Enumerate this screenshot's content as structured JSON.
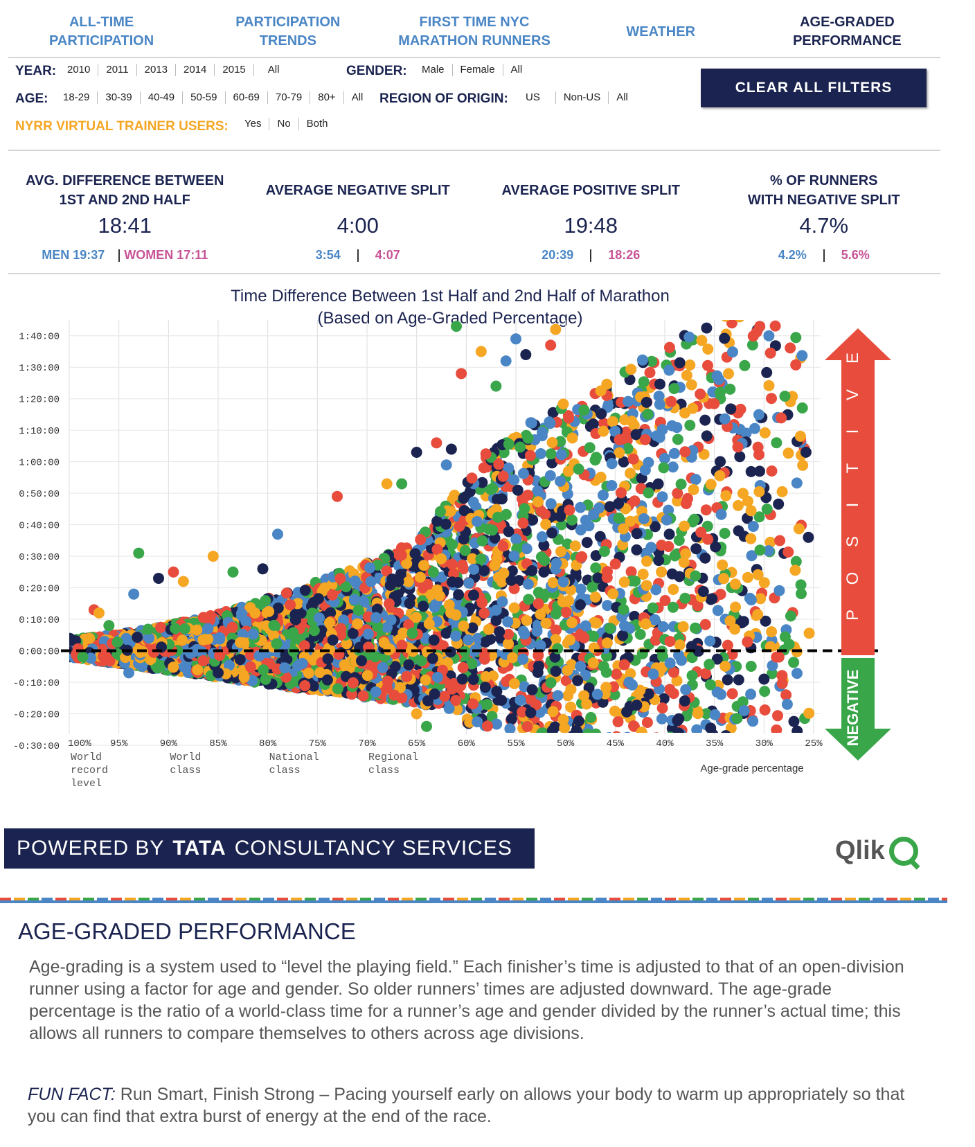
{
  "nav": {
    "items": [
      {
        "line1": "ALL-TIME",
        "line2": "PARTICIPATION"
      },
      {
        "line1": "PARTICIPATION",
        "line2": "TRENDS"
      },
      {
        "line1": "FIRST TIME NYC",
        "line2": "MARATHON RUNNERS"
      },
      {
        "line1": "WEATHER",
        "line2": ""
      },
      {
        "line1": "AGE-GRADED",
        "line2": "PERFORMANCE"
      }
    ]
  },
  "filters": {
    "year_label": "YEAR:",
    "years": [
      "2010",
      "2011",
      "2013",
      "2014",
      "2015",
      "All"
    ],
    "gender_label": "GENDER:",
    "genders": [
      "Male",
      "Female",
      "All"
    ],
    "age_label": "AGE:",
    "ages": [
      "18-29",
      "30-39",
      "40-49",
      "50-59",
      "60-69",
      "70-79",
      "80+",
      "All"
    ],
    "region_label": "REGION OF ORIGIN:",
    "regions": [
      "US",
      "Non-US",
      "All"
    ],
    "trainer_label": "NYRR VIRTUAL TRAINER USERS:",
    "trainer_opts": [
      "Yes",
      "No",
      "Both"
    ],
    "clear_label": "CLEAR ALL FILTERS"
  },
  "stats": [
    {
      "title1": "AVG. DIFFERENCE BETWEEN",
      "title2": "1ST AND 2ND HALF",
      "value": "18:41",
      "men": "MEN 19:37",
      "women": "WOMEN 17:11"
    },
    {
      "title1": "AVERAGE NEGATIVE SPLIT",
      "title2": "",
      "value": "4:00",
      "men": "3:54",
      "women": "4:07"
    },
    {
      "title1": "AVERAGE POSITIVE SPLIT",
      "title2": "",
      "value": "19:48",
      "men": "20:39",
      "women": "18:26"
    },
    {
      "title1": "% OF RUNNERS",
      "title2": "WITH NEGATIVE SPLIT",
      "value": "4.7%",
      "men": "4.2%",
      "women": "5.6%"
    }
  ],
  "chart_data": {
    "type": "scatter",
    "title": "Time Difference Between 1st Half and 2nd Half of Marathon",
    "subtitle": "(Based on Age-Graded Percentage)",
    "xlabel": "Age-grade percentage",
    "x_reversed": true,
    "xlim": [
      100,
      25
    ],
    "ylim_minutes": [
      -30,
      105
    ],
    "x_ticks": [
      "100%",
      "95%",
      "90%",
      "85%",
      "80%",
      "75%",
      "70%",
      "65%",
      "60%",
      "55%",
      "50%",
      "45%",
      "40%",
      "35%",
      "30%",
      "25%"
    ],
    "x_tick_values": [
      100,
      95,
      90,
      85,
      80,
      75,
      70,
      65,
      60,
      55,
      50,
      45,
      40,
      35,
      30,
      25
    ],
    "x_class_labels": [
      {
        "at": 100,
        "lines": [
          "World",
          "record",
          "level"
        ]
      },
      {
        "at": 90,
        "lines": [
          "World",
          "class"
        ]
      },
      {
        "at": 80,
        "lines": [
          "National",
          "class"
        ]
      },
      {
        "at": 70,
        "lines": [
          "Regional",
          "class"
        ]
      }
    ],
    "y_ticks": [
      "1:40:00",
      "1:30:00",
      "1:20:00",
      "1:10:00",
      "1:00:00",
      "0:50:00",
      "0:40:00",
      "0:30:00",
      "0:20:00",
      "0:10:00",
      "0:00:00",
      "-0:10:00",
      "-0:20:00",
      "-0:30:00"
    ],
    "y_tick_values": [
      100,
      90,
      80,
      70,
      60,
      50,
      40,
      30,
      20,
      10,
      0,
      -10,
      -20,
      -30
    ],
    "zero_line": 0,
    "grid": true,
    "colors": [
      "#e74c3c",
      "#f5a623",
      "#3aa64a",
      "#4a86c5",
      "#1b2450"
    ],
    "positive_label": "POSITIVE",
    "negative_label": "NEGATIVE",
    "positive_color": "#e74c3c",
    "negative_color": "#3aa64a",
    "outliers": [
      {
        "x": 97.5,
        "y": 13
      },
      {
        "x": 97,
        "y": 12
      },
      {
        "x": 93,
        "y": 31
      },
      {
        "x": 93.5,
        "y": 18
      },
      {
        "x": 91,
        "y": 23
      },
      {
        "x": 89.5,
        "y": 25
      },
      {
        "x": 85.5,
        "y": 30
      },
      {
        "x": 83.5,
        "y": 25
      },
      {
        "x": 79,
        "y": 37
      },
      {
        "x": 80.5,
        "y": 26
      },
      {
        "x": 73,
        "y": 49
      },
      {
        "x": 68,
        "y": 53
      },
      {
        "x": 66.5,
        "y": 53
      },
      {
        "x": 62,
        "y": 59
      },
      {
        "x": 61.5,
        "y": 64
      },
      {
        "x": 60.5,
        "y": 88
      },
      {
        "x": 58.5,
        "y": 95
      },
      {
        "x": 57,
        "y": 84
      },
      {
        "x": 55,
        "y": 99
      },
      {
        "x": 54,
        "y": 94
      },
      {
        "x": 51.5,
        "y": 97
      },
      {
        "x": 51,
        "y": 102
      },
      {
        "x": 61,
        "y": 103
      },
      {
        "x": 56,
        "y": 92
      },
      {
        "x": 65,
        "y": 63
      },
      {
        "x": 63,
        "y": 66
      },
      {
        "x": 88.5,
        "y": 22
      },
      {
        "x": 96,
        "y": 8
      },
      {
        "x": 94,
        "y": -7
      },
      {
        "x": 85,
        "y": -7
      },
      {
        "x": 66,
        "y": -29
      },
      {
        "x": 65,
        "y": -20
      },
      {
        "x": 64,
        "y": -24
      },
      {
        "x": 32,
        "y": -19
      },
      {
        "x": 30,
        "y": -9
      },
      {
        "x": 28.5,
        "y": -2
      }
    ]
  },
  "footer": {
    "powered_prefix": "POWERED BY",
    "powered_brand": "TATA",
    "powered_suffix": "CONSULTANCY SERVICES",
    "qlik": "Qlik"
  },
  "about": {
    "title": "AGE-GRADED PERFORMANCE",
    "text": "Age-grading is a system used to “level the playing field.” Each finisher’s time is adjusted to that of an open-division runner using a factor for age and gender. So older runners’ times are adjusted downward. The age-grade percentage is the ratio of a world-class time for a runner’s age and gender divided by the runner’s actual time; this allows all runners to compare themselves to others across age divisions.",
    "funfact_label": "FUN FACT:",
    "funfact_text": "Run Smart, Finish Strong – Pacing yourself early on allows your body to warm up appropriately so that you can find that extra burst of energy at the end of the race."
  }
}
